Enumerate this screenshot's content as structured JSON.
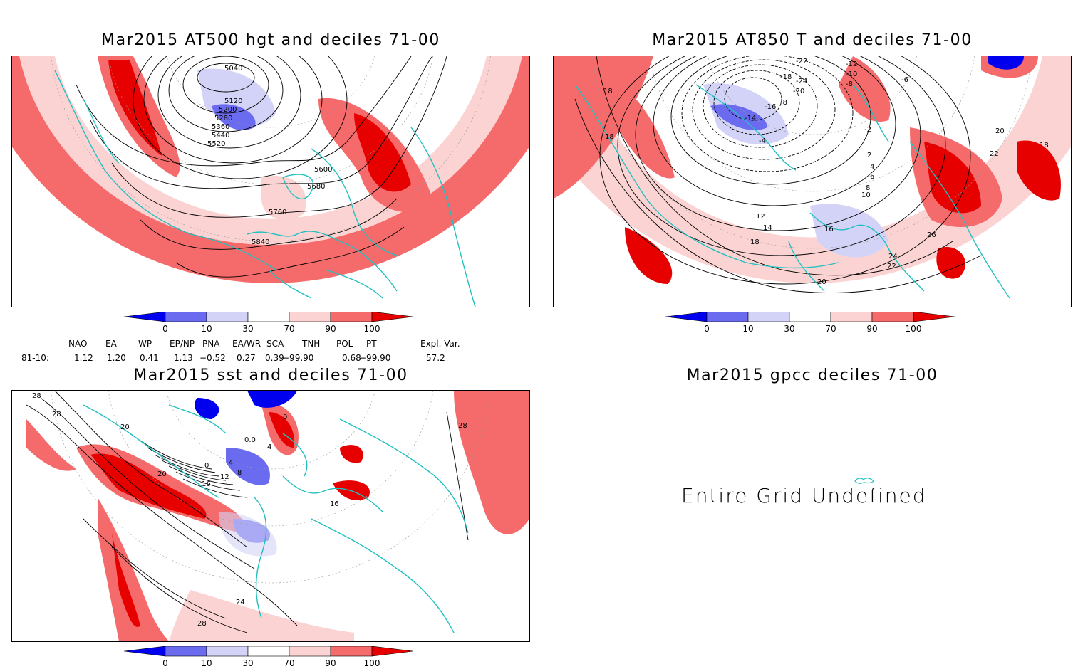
{
  "panels": {
    "z500": {
      "title": "Mar2015 AT500 hgt and deciles 71-00",
      "contour_labels": [
        "5040",
        "5120",
        "5200",
        "5280",
        "5360",
        "5440",
        "5520",
        "5600",
        "5680",
        "5760",
        "5840"
      ]
    },
    "t850": {
      "title": "Mar2015 AT850 T and deciles 71-00",
      "contour_labels": [
        "-22",
        "-18",
        "-12",
        "-10",
        "-8",
        "-6",
        "-24",
        "-20",
        "-14",
        "-16",
        "-8",
        "-4",
        "-2",
        "2",
        "4",
        "6",
        "8",
        "10",
        "12",
        "14",
        "16",
        "18",
        "18",
        "18",
        "20",
        "20",
        "22",
        "22",
        "24",
        "26",
        "18"
      ]
    },
    "sst": {
      "title": "Mar2015 sst and deciles 71-00",
      "contour_labels": [
        "28",
        "28",
        "20",
        "20",
        "16",
        "12",
        "8",
        "4",
        "0",
        "0.0",
        "4",
        "0",
        "16",
        "24",
        "28",
        "28"
      ]
    },
    "gpcc": {
      "title": "Mar2015 gpcc deciles 71-00",
      "message": "Entire Grid Undefined"
    }
  },
  "colorbar": {
    "ticks": [
      "0",
      "10",
      "30",
      "70",
      "90",
      "100"
    ],
    "colors": [
      "#0000ee",
      "#6b6bf0",
      "#d3d3f7",
      "#ffffff",
      "#fcd3d3",
      "#f56b6b",
      "#e60000"
    ]
  },
  "teleconnections": {
    "headers": [
      "NAO",
      "EA",
      "WP",
      "EP/NP",
      "PNA",
      "EA/WR",
      "SCA",
      "TNH",
      "POL",
      "PT",
      "Expl. Var."
    ],
    "row_label": "81-10:",
    "values": [
      "1.12",
      "1.20",
      "0.41",
      "1.13",
      "−0.52",
      "0.27",
      "0.39",
      "−99.90",
      "0.68",
      "−99.90",
      "57.2"
    ]
  },
  "coastline_color": "#20c0c0"
}
